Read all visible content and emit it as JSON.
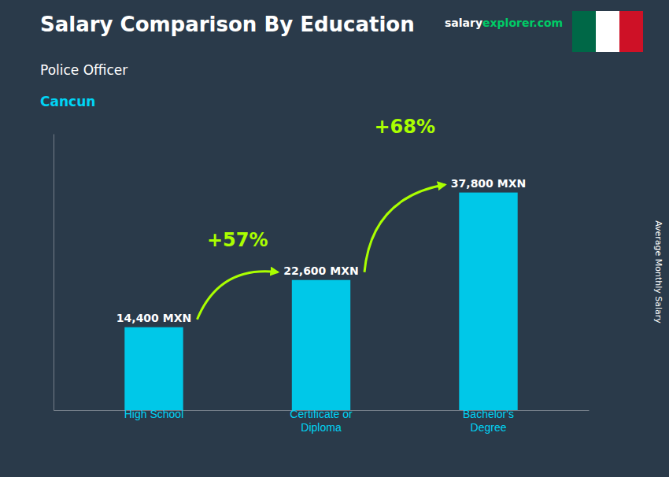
{
  "chart_data": {
    "type": "bar",
    "title": "Salary Comparison By Education",
    "subtitle": "Police Officer",
    "subtitle2": "Cancun",
    "categories": [
      "High School",
      "Certificate or\nDiploma",
      "Bachelor's\nDegree"
    ],
    "values": [
      14400,
      22600,
      37800
    ],
    "value_labels": [
      "14,400 MXN",
      "22,600 MXN",
      "37,800 MXN"
    ],
    "data_labels": true,
    "color": "#00c8e8",
    "ylim": [
      0,
      48000
    ],
    "ylabel": "Average Monthly Salary",
    "tick_labels": "x",
    "annotations": [
      "+57%",
      "+68%"
    ],
    "source": [
      "salary",
      "explorer.com"
    ]
  }
}
